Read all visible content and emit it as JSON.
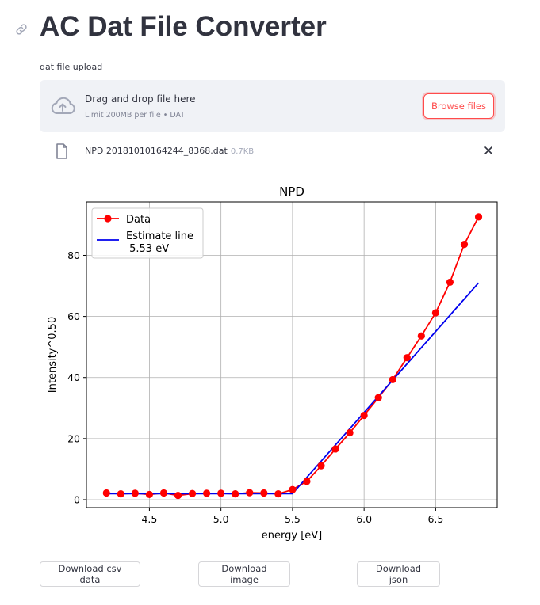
{
  "header": {
    "title": "AC Dat File Converter"
  },
  "uploader": {
    "label": "dat file upload",
    "drop_text": "Drag and drop file here",
    "limit_text": "Limit 200MB per file • DAT",
    "browse_label": "Browse files"
  },
  "file": {
    "name": "NPD 20181010164244_8368.dat",
    "size": "0.7KB"
  },
  "chart_data": {
    "type": "line",
    "title": "NPD",
    "xlabel": "energy [eV]",
    "ylabel": "Intensity^0.50",
    "xlim": [
      4.06,
      6.93
    ],
    "ylim": [
      -2.6,
      97.5
    ],
    "xticks": [
      4.5,
      5.0,
      5.5,
      6.0,
      6.5
    ],
    "yticks": [
      0,
      20,
      40,
      60,
      80
    ],
    "grid": true,
    "legend_position": "top-left",
    "series": [
      {
        "name": "Data",
        "color": "#ff0000",
        "marker": "circle",
        "x": [
          4.2,
          4.3,
          4.4,
          4.5,
          4.6,
          4.7,
          4.8,
          4.9,
          5.0,
          5.1,
          5.2,
          5.3,
          5.4,
          5.5,
          5.6,
          5.7,
          5.8,
          5.9,
          6.0,
          6.1,
          6.2,
          6.3,
          6.4,
          6.5,
          6.6,
          6.7,
          6.8
        ],
        "y": [
          2.2,
          1.9,
          2.1,
          1.7,
          2.2,
          1.4,
          2.0,
          2.1,
          2.1,
          1.9,
          2.3,
          2.2,
          1.9,
          3.3,
          6.0,
          11.1,
          16.6,
          21.9,
          27.6,
          33.4,
          39.3,
          46.5,
          53.6,
          61.2,
          71.2,
          83.6,
          92.6
        ]
      },
      {
        "name": "Estimate line\n 5.53 eV",
        "color": "#0000ee",
        "x": [
          4.2,
          5.5,
          6.8
        ],
        "y": [
          2.0,
          2.0,
          71.0
        ]
      }
    ]
  },
  "downloads": {
    "csv_label": "Download csv data",
    "image_label": "Download image",
    "json_label": "Download json"
  }
}
